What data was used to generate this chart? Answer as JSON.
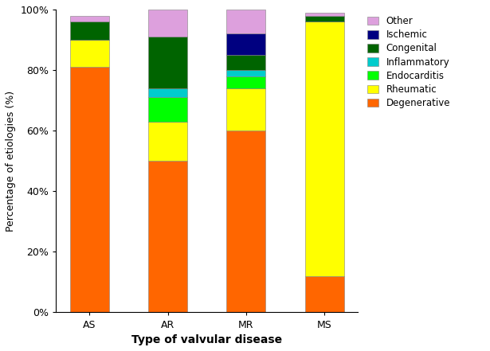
{
  "categories": [
    "AS",
    "AR",
    "MR",
    "MS"
  ],
  "series": [
    {
      "label": "Degenerative",
      "color": "#FF6600",
      "values": [
        81,
        50,
        60,
        12
      ]
    },
    {
      "label": "Rheumatic",
      "color": "#FFFF00",
      "values": [
        9,
        13,
        14,
        84
      ]
    },
    {
      "label": "Endocarditis",
      "color": "#00FF00",
      "values": [
        0,
        8,
        4,
        0
      ]
    },
    {
      "label": "Inflammatory",
      "color": "#00CCCC",
      "values": [
        0,
        3,
        2,
        0
      ]
    },
    {
      "label": "Congenital",
      "color": "#006400",
      "values": [
        6,
        17,
        5,
        2
      ]
    },
    {
      "label": "Ischemic",
      "color": "#000080",
      "values": [
        0,
        0,
        7,
        0
      ]
    },
    {
      "label": "Other",
      "color": "#DDA0DD",
      "values": [
        2,
        9,
        8,
        1
      ]
    }
  ],
  "xlabel": "Type of valvular disease",
  "ylabel": "Percentage of etiologies (%)",
  "ylim": [
    0,
    100
  ],
  "yticks": [
    0,
    20,
    40,
    60,
    80,
    100
  ],
  "ytick_labels": [
    "0%",
    "20%",
    "40%",
    "60%",
    "80%",
    "100%"
  ],
  "bar_width": 0.5,
  "figsize": [
    6.15,
    4.41
  ],
  "dpi": 100,
  "background_color": "#FFFFFF",
  "bar_edge_color": "#808080",
  "bar_edge_width": 0.4,
  "xlabel_fontsize": 10,
  "ylabel_fontsize": 9,
  "tick_fontsize": 9,
  "legend_fontsize": 8.5,
  "title_fontsize": 10
}
